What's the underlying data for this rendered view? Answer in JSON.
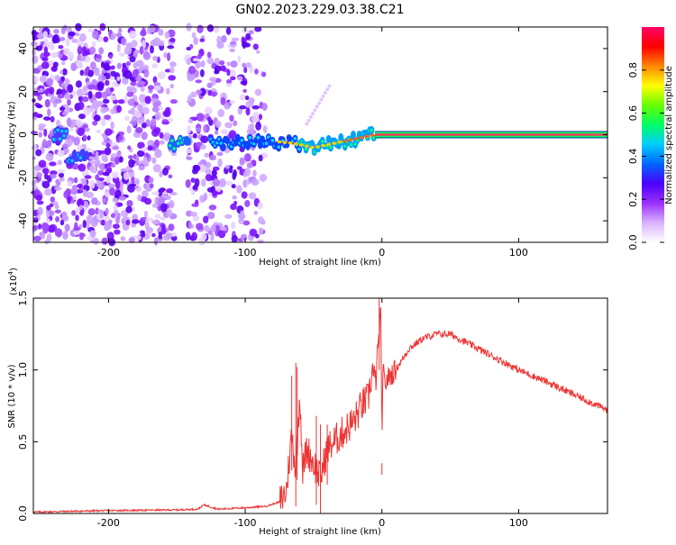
{
  "title": "GN02.2023.229.03.38.C21",
  "chart_data": [
    {
      "type": "heatmap",
      "xlabel": "Height of straight line (km)",
      "ylabel": "Frequency (Hz)",
      "xlim": [
        -255,
        165
      ],
      "ylim": [
        -50,
        50
      ],
      "xticks": [
        -200,
        -100,
        0,
        100
      ],
      "yticks": [
        -40,
        -20,
        0,
        20,
        40
      ],
      "colorbar": {
        "label": "Normalized spectral amplitude",
        "range": [
          0,
          1
        ],
        "ticks": [
          "0.0",
          "0.2",
          "0.4",
          "0.6",
          "0.8"
        ],
        "colors": [
          "#ffffff",
          "#d9b3ff",
          "#9b30ff",
          "#4b00ff",
          "#0066ff",
          "#00ccff",
          "#00ff66",
          "#66ff00",
          "#ffff00",
          "#ff8800",
          "#ff0000",
          "#ff0066"
        ]
      },
      "ridge": [
        {
          "x": -230,
          "y": -10
        },
        {
          "x": -150,
          "y": -4
        },
        {
          "x": -120,
          "y": -4
        },
        {
          "x": -100,
          "y": -4
        },
        {
          "x": -80,
          "y": -3
        },
        {
          "x": -65,
          "y": -4
        },
        {
          "x": -50,
          "y": -6
        },
        {
          "x": -35,
          "y": -4
        },
        {
          "x": -20,
          "y": -2
        },
        {
          "x": -5,
          "y": 0
        },
        {
          "x": 165,
          "y": 0
        }
      ]
    },
    {
      "type": "line",
      "xlabel": "Height of straight line (km)",
      "ylabel": "SNR (10 * v/v)",
      "yunit": "(x10",
      "yunit_exp": "4",
      "yunit_close": ")",
      "xlim": [
        -255,
        165
      ],
      "ylim": [
        0,
        1.5
      ],
      "xticks": [
        -200,
        -100,
        0,
        100
      ],
      "yticks": [
        "0.0",
        "0.5",
        "1.0",
        "1.5"
      ],
      "color": "#ee3333",
      "x": [
        -255,
        -200,
        -150,
        -135,
        -130,
        -120,
        -100,
        -85,
        -75,
        -70,
        -66,
        -63,
        -60,
        -58,
        -55,
        -50,
        -45,
        -40,
        -35,
        -30,
        -25,
        -20,
        -15,
        -10,
        -7,
        -5,
        -3,
        -1,
        0,
        1,
        2,
        5,
        10,
        20,
        30,
        40,
        50,
        60,
        80,
        100,
        120,
        140,
        165
      ],
      "y": [
        0.01,
        0.02,
        0.025,
        0.03,
        0.06,
        0.03,
        0.04,
        0.05,
        0.08,
        0.15,
        0.55,
        0.3,
        0.85,
        0.3,
        0.45,
        0.35,
        0.25,
        0.45,
        0.5,
        0.55,
        0.6,
        0.65,
        0.75,
        0.8,
        1.0,
        0.9,
        1.1,
        1.4,
        0.6,
        1.0,
        0.9,
        0.95,
        1.0,
        1.15,
        1.22,
        1.25,
        1.25,
        1.2,
        1.1,
        1.0,
        0.92,
        0.83,
        0.72
      ],
      "spikes": [
        {
          "x": -66,
          "y": 0.96
        },
        {
          "x": -63,
          "y": 1.05
        },
        {
          "x": -62,
          "y": 1.02
        },
        {
          "x": -48,
          "y": 0.68
        },
        {
          "x": -45,
          "y": 0.62
        },
        {
          "x": -40,
          "y": 0.62
        },
        {
          "x": -2,
          "y": 1.5
        },
        {
          "x": 0,
          "y": 0.27
        }
      ]
    }
  ]
}
